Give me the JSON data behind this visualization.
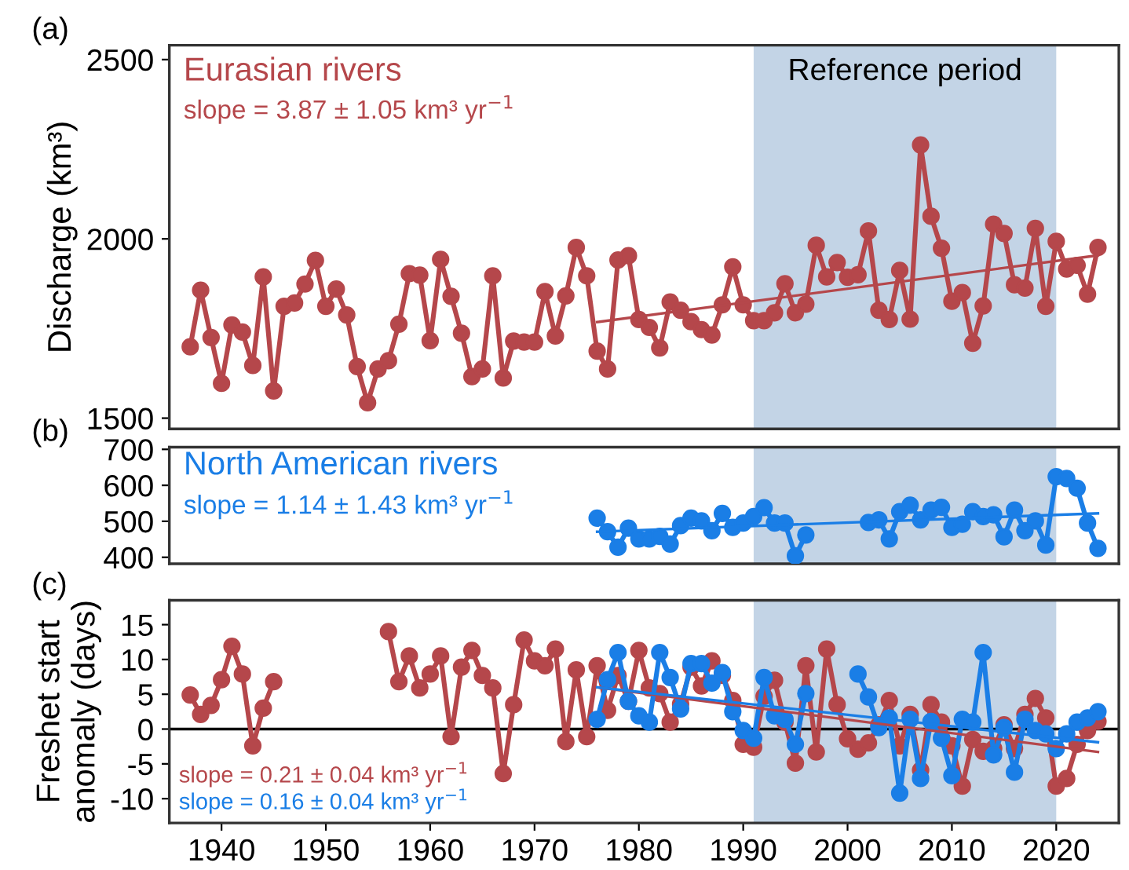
{
  "chart_data": [
    {
      "type": "line",
      "ylabel": "Discharge (km³)",
      "annotations": [
        "(a)",
        "slope = 3.87 ± 1.05 km³ yr$^{−1}$"
      ],
      "xlim": [
        1935,
        2026
      ],
      "ylim": [
        1470,
        2540
      ],
      "yticks": [
        1500,
        2000,
        2500
      ],
      "tick_labels": "y",
      "marker": "circle",
      "line_style": "solid",
      "grid": false,
      "legend": false,
      "bands": [
        {
          "axis": "x",
          "from": 1991,
          "to": 2020,
          "label": "Reference period",
          "color": "#c3d4e6"
        }
      ],
      "series": [
        {
          "name": "Eurasian rivers",
          "color": "#b5474b",
          "x": [
            1937,
            1938,
            1939,
            1940,
            1941,
            1942,
            1943,
            1944,
            1945,
            1946,
            1947,
            1948,
            1949,
            1950,
            1951,
            1952,
            1953,
            1954,
            1955,
            1956,
            1957,
            1958,
            1959,
            1960,
            1961,
            1962,
            1963,
            1964,
            1965,
            1966,
            1967,
            1968,
            1969,
            1970,
            1971,
            1972,
            1973,
            1974,
            1975,
            1976,
            1977,
            1978,
            1979,
            1980,
            1981,
            1982,
            1983,
            1984,
            1985,
            1986,
            1987,
            1988,
            1989,
            1990,
            1991,
            1992,
            1993,
            1994,
            1995,
            1996,
            1997,
            1998,
            1999,
            2000,
            2001,
            2002,
            2003,
            2004,
            2005,
            2006,
            2007,
            2008,
            2009,
            2010,
            2011,
            2012,
            2013,
            2014,
            2015,
            2016,
            2017,
            2018,
            2019,
            2020,
            2021,
            2022,
            2023,
            2024
          ],
          "values": [
            1699,
            1857,
            1725,
            1597,
            1760,
            1740,
            1647,
            1894,
            1576,
            1812,
            1821,
            1874,
            1940,
            1812,
            1860,
            1788,
            1644,
            1543,
            1637,
            1660,
            1762,
            1903,
            1899,
            1716,
            1943,
            1840,
            1737,
            1616,
            1637,
            1897,
            1612,
            1715,
            1712,
            1712,
            1853,
            1729,
            1841,
            1976,
            1897,
            1687,
            1637,
            1941,
            1953,
            1775,
            1753,
            1696,
            1824,
            1801,
            1769,
            1747,
            1732,
            1816,
            1922,
            1816,
            1772,
            1772,
            1794,
            1875,
            1794,
            1818,
            1982,
            1894,
            1934,
            1893,
            1900,
            2022,
            1801,
            1775,
            1912,
            1776,
            2262,
            2063,
            1974,
            1826,
            1850,
            1709,
            1813,
            2041,
            2015,
            1872,
            1863,
            2029,
            1812,
            1993,
            1916,
            1926,
            1846,
            1976
          ]
        },
        {
          "type": "line",
          "color": "#b5474b",
          "marker": "none",
          "x": [
            1976,
            2024
          ],
          "values": [
            1768,
            1954
          ]
        }
      ]
    },
    {
      "type": "line",
      "annotations": [
        "(b)",
        "slope = 1.14 ± 1.43 km³ yr$^{−1}$"
      ],
      "xlim": [
        1935,
        2026
      ],
      "ylim": [
        382,
        706
      ],
      "yticks": [
        400,
        500,
        600,
        700
      ],
      "tick_labels": "y",
      "marker": "circle",
      "line_style": "solid",
      "grid": false,
      "legend": false,
      "bands": [
        {
          "axis": "x",
          "from": 1991,
          "to": 2020,
          "color": "#c3d4e6"
        }
      ],
      "series": [
        {
          "name": "North American rivers",
          "color": "#1a7ee6",
          "x": [
            1976,
            1977,
            1978,
            1979,
            1980,
            1981,
            1982,
            1983,
            1984,
            1985,
            1986,
            1987,
            1988,
            1989,
            1990,
            1991,
            1992,
            1993,
            1994,
            1995,
            1996,
            1997,
            1998,
            1999,
            2000,
            2001,
            2002,
            2003,
            2004,
            2005,
            2006,
            2007,
            2008,
            2009,
            2010,
            2011,
            2012,
            2013,
            2014,
            2015,
            2016,
            2017,
            2018,
            2019,
            2020,
            2021,
            2022,
            2023,
            2024
          ],
          "values": [
            509,
            471,
            428,
            481,
            451,
            451,
            458,
            437,
            488,
            509,
            501,
            474,
            522,
            483,
            495,
            513,
            538,
            495,
            495,
            404,
            462,
            null,
            null,
            null,
            null,
            null,
            497,
            504,
            451,
            527,
            545,
            504,
            531,
            539,
            483,
            492,
            527,
            513,
            518,
            457,
            531,
            474,
            501,
            434,
            624,
            619,
            592,
            495,
            425
          ]
        },
        {
          "type": "line",
          "color": "#1a7ee6",
          "marker": "none",
          "x": [
            1976,
            2024
          ],
          "values": [
            471,
            522
          ]
        }
      ]
    },
    {
      "type": "line",
      "ylabel": "Freshet start\nanomaly (days)",
      "annotations": [
        "(c)",
        "slope = 0.21 ± 0.04 km³ yr$^{−1}$",
        "slope = 0.16 ± 0.04 km³ yr$^{−1}$"
      ],
      "xlim": [
        1935,
        2026
      ],
      "xticks": [
        1940,
        1950,
        1960,
        1970,
        1980,
        1990,
        2000,
        2010,
        2020
      ],
      "ylim": [
        -13.5,
        18.5
      ],
      "yticks": [
        -10,
        -5,
        0,
        5,
        10,
        15
      ],
      "marker": "circle",
      "line_style": "solid",
      "grid": false,
      "legend": false,
      "bands": [
        {
          "axis": "x",
          "from": 1991,
          "to": 2020,
          "color": "#c3d4e6"
        }
      ],
      "ref_lines": [
        {
          "axis": "y",
          "value": 0,
          "color": "#000000"
        }
      ],
      "series": [
        {
          "color": "#b5474b",
          "x": [
            1937,
            1938,
            1939,
            1940,
            1941,
            1942,
            1943,
            1944,
            1945,
            1946,
            1947,
            1948,
            1949,
            1950,
            1951,
            1952,
            1953,
            1954,
            1955,
            1956,
            1957,
            1958,
            1959,
            1960,
            1961,
            1962,
            1963,
            1964,
            1965,
            1966,
            1967,
            1968,
            1969,
            1970,
            1971,
            1972,
            1973,
            1974,
            1975,
            1976,
            1977,
            1978,
            1979,
            1980,
            1981,
            1982,
            1983,
            1984,
            1985,
            1986,
            1987,
            1988,
            1989,
            1990,
            1991,
            1992,
            1993,
            1994,
            1995,
            1996,
            1997,
            1998,
            1999,
            2000,
            2001,
            2002,
            2003,
            2004,
            2005,
            2006,
            2007,
            2008,
            2009,
            2010,
            2011,
            2012,
            2013,
            2014,
            2015,
            2016,
            2017,
            2018,
            2019,
            2020,
            2021,
            2022,
            2023,
            2024
          ],
          "values": [
            4.9,
            2.1,
            3.4,
            7.1,
            11.9,
            7.9,
            -2.4,
            3.0,
            6.8,
            null,
            null,
            null,
            null,
            null,
            null,
            null,
            null,
            null,
            null,
            14.0,
            6.8,
            10.5,
            5.9,
            7.9,
            10.5,
            -1.1,
            8.9,
            11.3,
            7.7,
            5.9,
            -6.4,
            3.5,
            12.8,
            9.8,
            9.1,
            11.5,
            -1.8,
            8.5,
            -1.1,
            9.1,
            2.7,
            7.7,
            4.0,
            11.3,
            5.9,
            5.1,
            1.0,
            3.6,
            8.9,
            6.2,
            9.8,
            7.7,
            4.1,
            -2.2,
            -2.6,
            4.7,
            7.0,
            1.0,
            -4.9,
            9.1,
            -3.3,
            11.5,
            3.5,
            -1.4,
            -2.9,
            -2.0,
            0.6,
            4.1,
            -2.4,
            2.1,
            -5.9,
            3.5,
            1.0,
            -2.4,
            -8.2,
            -1.5,
            -3.2,
            -2.8,
            0.6,
            -2.8,
            2.1,
            4.4,
            1.6,
            -8.2,
            -7.1,
            -2.2,
            -0.2,
            1.1
          ]
        },
        {
          "color": "#1a7ee6",
          "x": [
            1976,
            1977,
            1978,
            1979,
            1980,
            1981,
            1982,
            1983,
            1984,
            1985,
            1986,
            1987,
            1988,
            1989,
            1990,
            1991,
            1992,
            1993,
            1994,
            1995,
            1996,
            1997,
            1998,
            1999,
            2000,
            2001,
            2002,
            2003,
            2004,
            2005,
            2006,
            2007,
            2008,
            2009,
            2010,
            2011,
            2012,
            2013,
            2014,
            2015,
            2016,
            2017,
            2018,
            2019,
            2020,
            2021,
            2022,
            2023,
            2024
          ],
          "values": [
            1.4,
            7.1,
            11.0,
            4.0,
            1.9,
            1.0,
            11.0,
            7.4,
            2.9,
            9.4,
            9.4,
            6.6,
            8.1,
            2.5,
            -0.2,
            -1.3,
            7.4,
            1.9,
            1.4,
            -2.2,
            5.1,
            null,
            null,
            null,
            null,
            7.9,
            4.6,
            0.2,
            1.6,
            -9.2,
            1.4,
            -7.1,
            1.1,
            -1.3,
            -6.7,
            1.4,
            1.0,
            11.0,
            -3.7,
            0.2,
            -6.2,
            1.4,
            -0.2,
            -0.7,
            -2.8,
            -0.7,
            1.0,
            1.6,
            2.5
          ]
        },
        {
          "type": "line",
          "color": "#b5474b",
          "marker": "none",
          "x": [
            1976,
            2024
          ],
          "values": [
            6.0,
            -3.3
          ]
        },
        {
          "type": "line",
          "color": "#1a7ee6",
          "marker": "none",
          "x": [
            1976,
            2024
          ],
          "values": [
            6.0,
            -1.9
          ]
        }
      ]
    }
  ]
}
